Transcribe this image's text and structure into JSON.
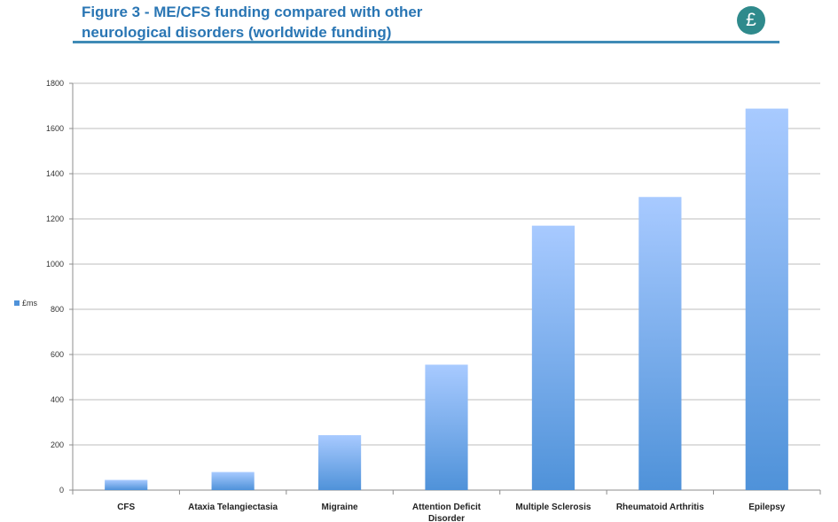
{
  "header": {
    "title_line1": "Figure 3 - ME/CFS funding compared with other",
    "title_line2": "neurological disorders (worldwide funding)",
    "badge_symbol": "£",
    "badge_icon": "pound-sterling-icon",
    "accent_color": "#2a76b4",
    "badge_color": "#2f8a8c"
  },
  "chart_data": {
    "type": "bar",
    "categories": [
      "CFS",
      "Ataxia Telangiectasia",
      "Migraine",
      "Attention Deficit Disorder",
      "Multiple Sclerosis",
      "Rheumatoid Arthritis",
      "Epilepsy"
    ],
    "category_lines": [
      [
        "CFS"
      ],
      [
        "Ataxia Telangiectasia"
      ],
      [
        "Migraine"
      ],
      [
        "Attention Deficit",
        "Disorder"
      ],
      [
        "Multiple Sclerosis"
      ],
      [
        "Rheumatoid Arthritis"
      ],
      [
        "Epilepsy"
      ]
    ],
    "series": [
      {
        "name": "£ms",
        "values": [
          45,
          80,
          243,
          555,
          1170,
          1297,
          1688
        ],
        "color_top": "#a8caff",
        "color_bottom": "#4f92d9"
      }
    ],
    "ylim": [
      0,
      1800
    ],
    "yticks": [
      0,
      200,
      400,
      600,
      800,
      1000,
      1200,
      1400,
      1600,
      1800
    ],
    "grid": true,
    "legend_position": "left",
    "title": "",
    "xlabel": "",
    "ylabel": ""
  }
}
